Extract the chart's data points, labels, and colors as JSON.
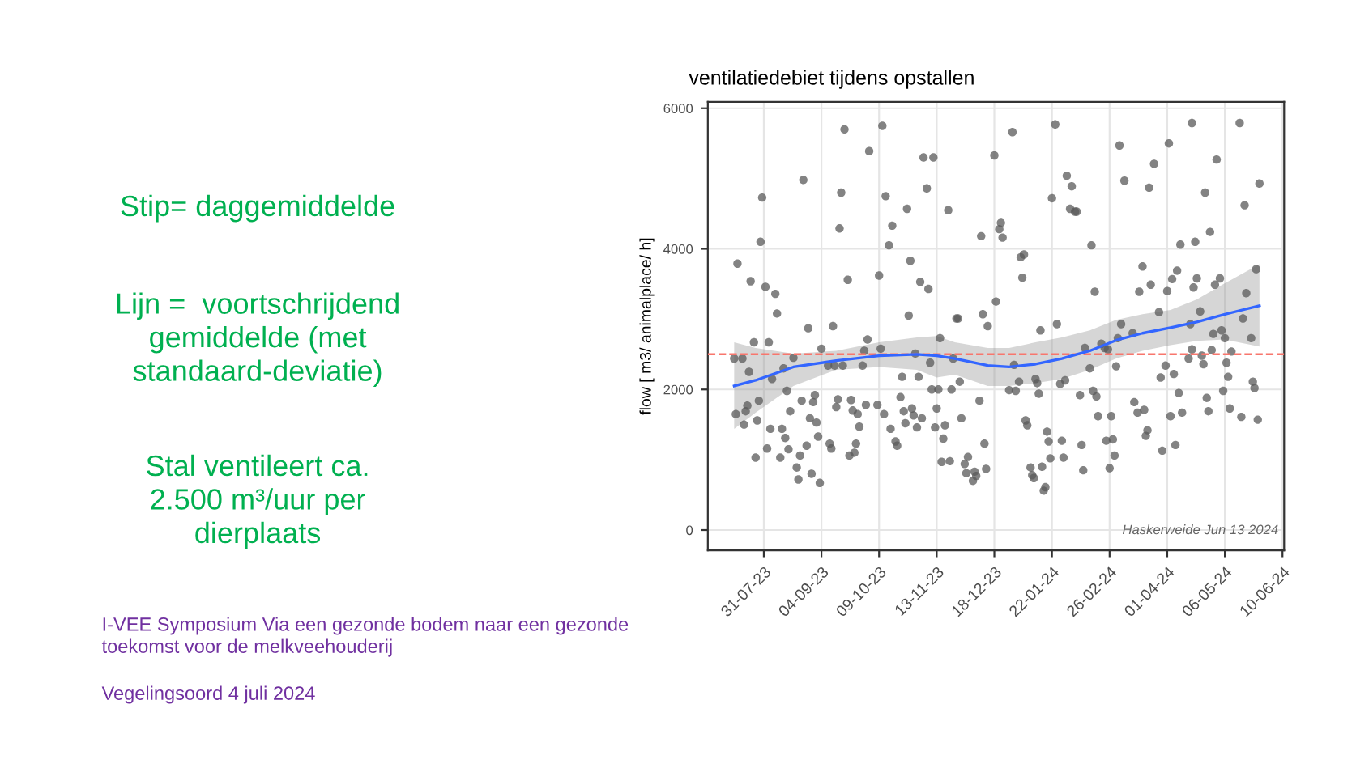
{
  "chart_data": {
    "type": "scatter",
    "title": "ventilatiedebiet tijdens opstallen",
    "ylabel": "flow [ m3/ animalplace/ h]",
    "xlim": [
      "2023-06-27",
      "2024-06-11"
    ],
    "ylim": [
      -290,
      6090
    ],
    "xticks": [
      {
        "value": "2023-07-31",
        "label": "31-07-23"
      },
      {
        "value": "2023-09-04",
        "label": "04-09-23"
      },
      {
        "value": "2023-10-09",
        "label": "09-10-23"
      },
      {
        "value": "2023-11-13",
        "label": "13-11-23"
      },
      {
        "value": "2023-12-18",
        "label": "18-12-23"
      },
      {
        "value": "2024-01-22",
        "label": "22-01-24"
      },
      {
        "value": "2024-02-26",
        "label": "26-02-24"
      },
      {
        "value": "2024-04-01",
        "label": "01-04-24"
      },
      {
        "value": "2024-05-06",
        "label": "06-05-24"
      },
      {
        "value": "2024-06-10",
        "label": "10-06-24"
      }
    ],
    "yticks": [
      0,
      2000,
      4000,
      6000
    ],
    "grid": true,
    "legend": false,
    "ref_lines": [
      {
        "axis": "y",
        "value": 2500,
        "color": "#f8766d",
        "line_style": "dashed"
      }
    ],
    "annotations": [
      "Stip= daggemiddelde",
      "Lijn =  voortschrijdend\ngemiddelde (met\nstandaard-deviatie)",
      "Stal ventileert ca.\n2.500 m³/uur per\ndierplaats",
      "I-VEE Symposium Via een gezonde bodem naar een gezonde\ntoekomst voor de melkveehouderij",
      "Vegelingsoord 4 juli 2024",
      "Haskerweide Jun 13 2024"
    ],
    "series": [
      {
        "type": "scatter",
        "marker": "circle",
        "color": "#595959",
        "x": [
          "2023-07-13",
          "2023-07-14",
          "2023-07-15",
          "2023-07-18",
          "2023-07-19",
          "2023-07-20",
          "2023-07-21",
          "2023-07-22",
          "2023-07-23",
          "2023-07-25",
          "2023-07-26",
          "2023-07-27",
          "2023-07-28",
          "2023-07-29",
          "2023-07-30",
          "2023-08-01",
          "2023-08-02",
          "2023-08-03",
          "2023-08-04",
          "2023-08-05",
          "2023-08-07",
          "2023-08-08",
          "2023-08-10",
          "2023-08-11",
          "2023-08-12",
          "2023-08-13",
          "2023-08-14",
          "2023-08-15",
          "2023-08-16",
          "2023-08-18",
          "2023-08-20",
          "2023-08-21",
          "2023-08-22",
          "2023-08-23",
          "2023-08-24",
          "2023-08-26",
          "2023-08-27",
          "2023-08-28",
          "2023-08-29",
          "2023-08-30",
          "2023-08-31",
          "2023-09-01",
          "2023-09-02",
          "2023-09-03",
          "2023-09-04",
          "2023-09-08",
          "2023-09-09",
          "2023-09-10",
          "2023-09-11",
          "2023-09-12",
          "2023-09-13",
          "2023-09-14",
          "2023-09-15",
          "2023-09-16",
          "2023-09-17",
          "2023-09-18",
          "2023-09-20",
          "2023-09-21",
          "2023-09-22",
          "2023-09-23",
          "2023-09-24",
          "2023-09-25",
          "2023-09-26",
          "2023-09-27",
          "2023-09-29",
          "2023-09-30",
          "2023-10-01",
          "2023-10-02",
          "2023-10-03",
          "2023-10-08",
          "2023-10-09",
          "2023-10-10",
          "2023-10-11",
          "2023-10-12",
          "2023-10-13",
          "2023-10-15",
          "2023-10-16",
          "2023-10-17",
          "2023-10-19",
          "2023-10-20",
          "2023-10-22",
          "2023-10-23",
          "2023-10-24",
          "2023-10-25",
          "2023-10-26",
          "2023-10-27",
          "2023-10-28",
          "2023-10-29",
          "2023-10-30",
          "2023-10-31",
          "2023-11-01",
          "2023-11-02",
          "2023-11-03",
          "2023-11-04",
          "2023-11-05",
          "2023-11-07",
          "2023-11-08",
          "2023-11-09",
          "2023-11-10",
          "2023-11-11",
          "2023-11-12",
          "2023-11-13",
          "2023-11-14",
          "2023-11-15",
          "2023-11-16",
          "2023-11-17",
          "2023-11-18",
          "2023-11-20",
          "2023-11-21",
          "2023-11-22",
          "2023-11-23",
          "2023-11-25",
          "2023-11-26",
          "2023-11-27",
          "2023-11-28",
          "2023-11-30",
          "2023-12-01",
          "2023-12-02",
          "2023-12-05",
          "2023-12-06",
          "2023-12-07",
          "2023-12-09",
          "2023-12-10",
          "2023-12-11",
          "2023-12-12",
          "2023-12-13",
          "2023-12-14",
          "2023-12-18",
          "2023-12-19",
          "2023-12-21",
          "2023-12-22",
          "2023-12-23",
          "2023-12-27",
          "2023-12-29",
          "2023-12-30",
          "2023-12-31",
          "2024-01-02",
          "2024-01-03",
          "2024-01-04",
          "2024-01-05",
          "2024-01-06",
          "2024-01-07",
          "2024-01-09",
          "2024-01-10",
          "2024-01-11",
          "2024-01-12",
          "2024-01-13",
          "2024-01-14",
          "2024-01-15",
          "2024-01-16",
          "2024-01-17",
          "2024-01-18",
          "2024-01-19",
          "2024-01-20",
          "2024-01-21",
          "2024-01-22",
          "2024-01-24",
          "2024-01-25",
          "2024-01-27",
          "2024-01-28",
          "2024-01-29",
          "2024-01-30",
          "2024-01-31",
          "2024-02-02",
          "2024-02-03",
          "2024-02-05",
          "2024-02-06",
          "2024-02-08",
          "2024-02-09",
          "2024-02-10",
          "2024-02-11",
          "2024-02-14",
          "2024-02-15",
          "2024-02-16",
          "2024-02-17",
          "2024-02-18",
          "2024-02-19",
          "2024-02-21",
          "2024-02-23",
          "2024-02-24",
          "2024-02-25",
          "2024-02-26",
          "2024-02-27",
          "2024-02-28",
          "2024-02-29",
          "2024-03-01",
          "2024-03-02",
          "2024-03-03",
          "2024-03-04",
          "2024-03-06",
          "2024-03-11",
          "2024-03-12",
          "2024-03-14",
          "2024-03-15",
          "2024-03-17",
          "2024-03-18",
          "2024-03-19",
          "2024-03-20",
          "2024-03-21",
          "2024-03-22",
          "2024-03-24",
          "2024-03-27",
          "2024-03-28",
          "2024-03-29",
          "2024-03-31",
          "2024-04-01",
          "2024-04-02",
          "2024-04-03",
          "2024-04-04",
          "2024-04-05",
          "2024-04-06",
          "2024-04-07",
          "2024-04-08",
          "2024-04-09",
          "2024-04-10",
          "2024-04-14",
          "2024-04-15",
          "2024-04-16",
          "2024-04-16",
          "2024-04-17",
          "2024-04-18",
          "2024-04-19",
          "2024-04-21",
          "2024-04-22",
          "2024-04-23",
          "2024-04-24",
          "2024-04-25",
          "2024-04-26",
          "2024-04-27",
          "2024-04-28",
          "2024-04-29",
          "2024-04-30",
          "2024-05-01",
          "2024-05-03",
          "2024-05-04",
          "2024-05-05",
          "2024-05-06",
          "2024-05-07",
          "2024-05-08",
          "2024-05-09",
          "2024-05-10",
          "2024-05-15",
          "2024-05-16",
          "2024-05-17",
          "2024-05-18",
          "2024-05-19",
          "2024-05-22",
          "2024-05-23",
          "2024-05-24",
          "2024-05-25",
          "2024-05-26",
          "2024-05-27"
        ],
        "values": [
          2440,
          1650,
          3790,
          2440,
          1500,
          1690,
          1770,
          2250,
          3540,
          2670,
          1030,
          1560,
          1840,
          4100,
          4730,
          3460,
          1160,
          2670,
          1440,
          2150,
          3360,
          3080,
          1030,
          1440,
          2300,
          1310,
          1980,
          1150,
          1690,
          2450,
          890,
          720,
          1060,
          1840,
          4980,
          1200,
          2870,
          1590,
          800,
          1820,
          1920,
          1530,
          1330,
          670,
          2580,
          2340,
          1230,
          1160,
          2900,
          2340,
          1750,
          1860,
          4290,
          4800,
          2340,
          5700,
          3560,
          1060,
          1850,
          1700,
          1100,
          1230,
          1650,
          1470,
          2340,
          2550,
          1780,
          2710,
          5390,
          1780,
          3620,
          2580,
          5750,
          1650,
          4750,
          4050,
          1440,
          4330,
          1260,
          1200,
          1890,
          2180,
          1690,
          1520,
          4570,
          3050,
          3830,
          1730,
          1630,
          2510,
          1460,
          2180,
          3530,
          1590,
          5300,
          4860,
          3430,
          2380,
          2000,
          5300,
          1460,
          1730,
          2000,
          2730,
          970,
          1300,
          1490,
          4550,
          980,
          2000,
          2440,
          3010,
          3010,
          2110,
          1590,
          940,
          810,
          1040,
          700,
          830,
          770,
          1840,
          4180,
          3070,
          1230,
          870,
          2900,
          5330,
          3250,
          4280,
          4370,
          4160,
          1990,
          5660,
          2350,
          1980,
          2110,
          3880,
          3590,
          3920,
          1560,
          1490,
          890,
          780,
          740,
          2150,
          2090,
          1940,
          2840,
          900,
          560,
          610,
          1400,
          1260,
          1020,
          4720,
          5770,
          2930,
          2080,
          1270,
          1030,
          2130,
          5040,
          4570,
          4890,
          4530,
          4530,
          1920,
          1210,
          850,
          2590,
          2300,
          4050,
          1980,
          3390,
          1900,
          1620,
          2650,
          2590,
          1270,
          2570,
          880,
          1620,
          1290,
          1060,
          2330,
          2730,
          5470,
          2930,
          4970,
          2800,
          1820,
          1670,
          3390,
          3750,
          1710,
          1340,
          1420,
          4870,
          3490,
          5210,
          3100,
          2170,
          1130,
          2340,
          3400,
          5500,
          1620,
          3570,
          2220,
          1210,
          3690,
          1950,
          4060,
          1670,
          2440,
          2930,
          2570,
          5790,
          3450,
          4100,
          3580,
          3110,
          2480,
          2360,
          4800,
          1880,
          1690,
          4240,
          2560,
          2790,
          3490,
          5270,
          3580,
          2840,
          1980,
          2730,
          2380,
          2180,
          1730,
          2540,
          5790,
          1610,
          3010,
          4620,
          3370,
          2730,
          2110,
          2020,
          3710,
          1570,
          4930
        ]
      },
      {
        "type": "line",
        "color": "#3366ff",
        "x": [
          "2023-07-13",
          "2023-07-26",
          "2023-08-18",
          "2023-09-13",
          "2023-10-09",
          "2023-11-01",
          "2023-11-13",
          "2023-11-24",
          "2023-12-14",
          "2023-12-27",
          "2024-01-12",
          "2024-01-28",
          "2024-02-14",
          "2024-03-01",
          "2024-03-17",
          "2024-04-03",
          "2024-04-19",
          "2024-05-06",
          "2024-05-27"
        ],
        "values": [
          2050,
          2130,
          2320,
          2410,
          2480,
          2500,
          2480,
          2440,
          2340,
          2320,
          2360,
          2440,
          2550,
          2700,
          2800,
          2880,
          2960,
          3070,
          3190
        ],
        "lower": [
          1440,
          1670,
          2050,
          2280,
          2320,
          2280,
          2170,
          2210,
          2050,
          2050,
          2090,
          2150,
          2280,
          2440,
          2550,
          2630,
          2690,
          2710,
          2610
        ],
        "upper": [
          2670,
          2590,
          2510,
          2550,
          2670,
          2740,
          2760,
          2670,
          2590,
          2590,
          2670,
          2740,
          2840,
          2990,
          3070,
          3130,
          3280,
          3510,
          3780
        ]
      }
    ]
  }
}
